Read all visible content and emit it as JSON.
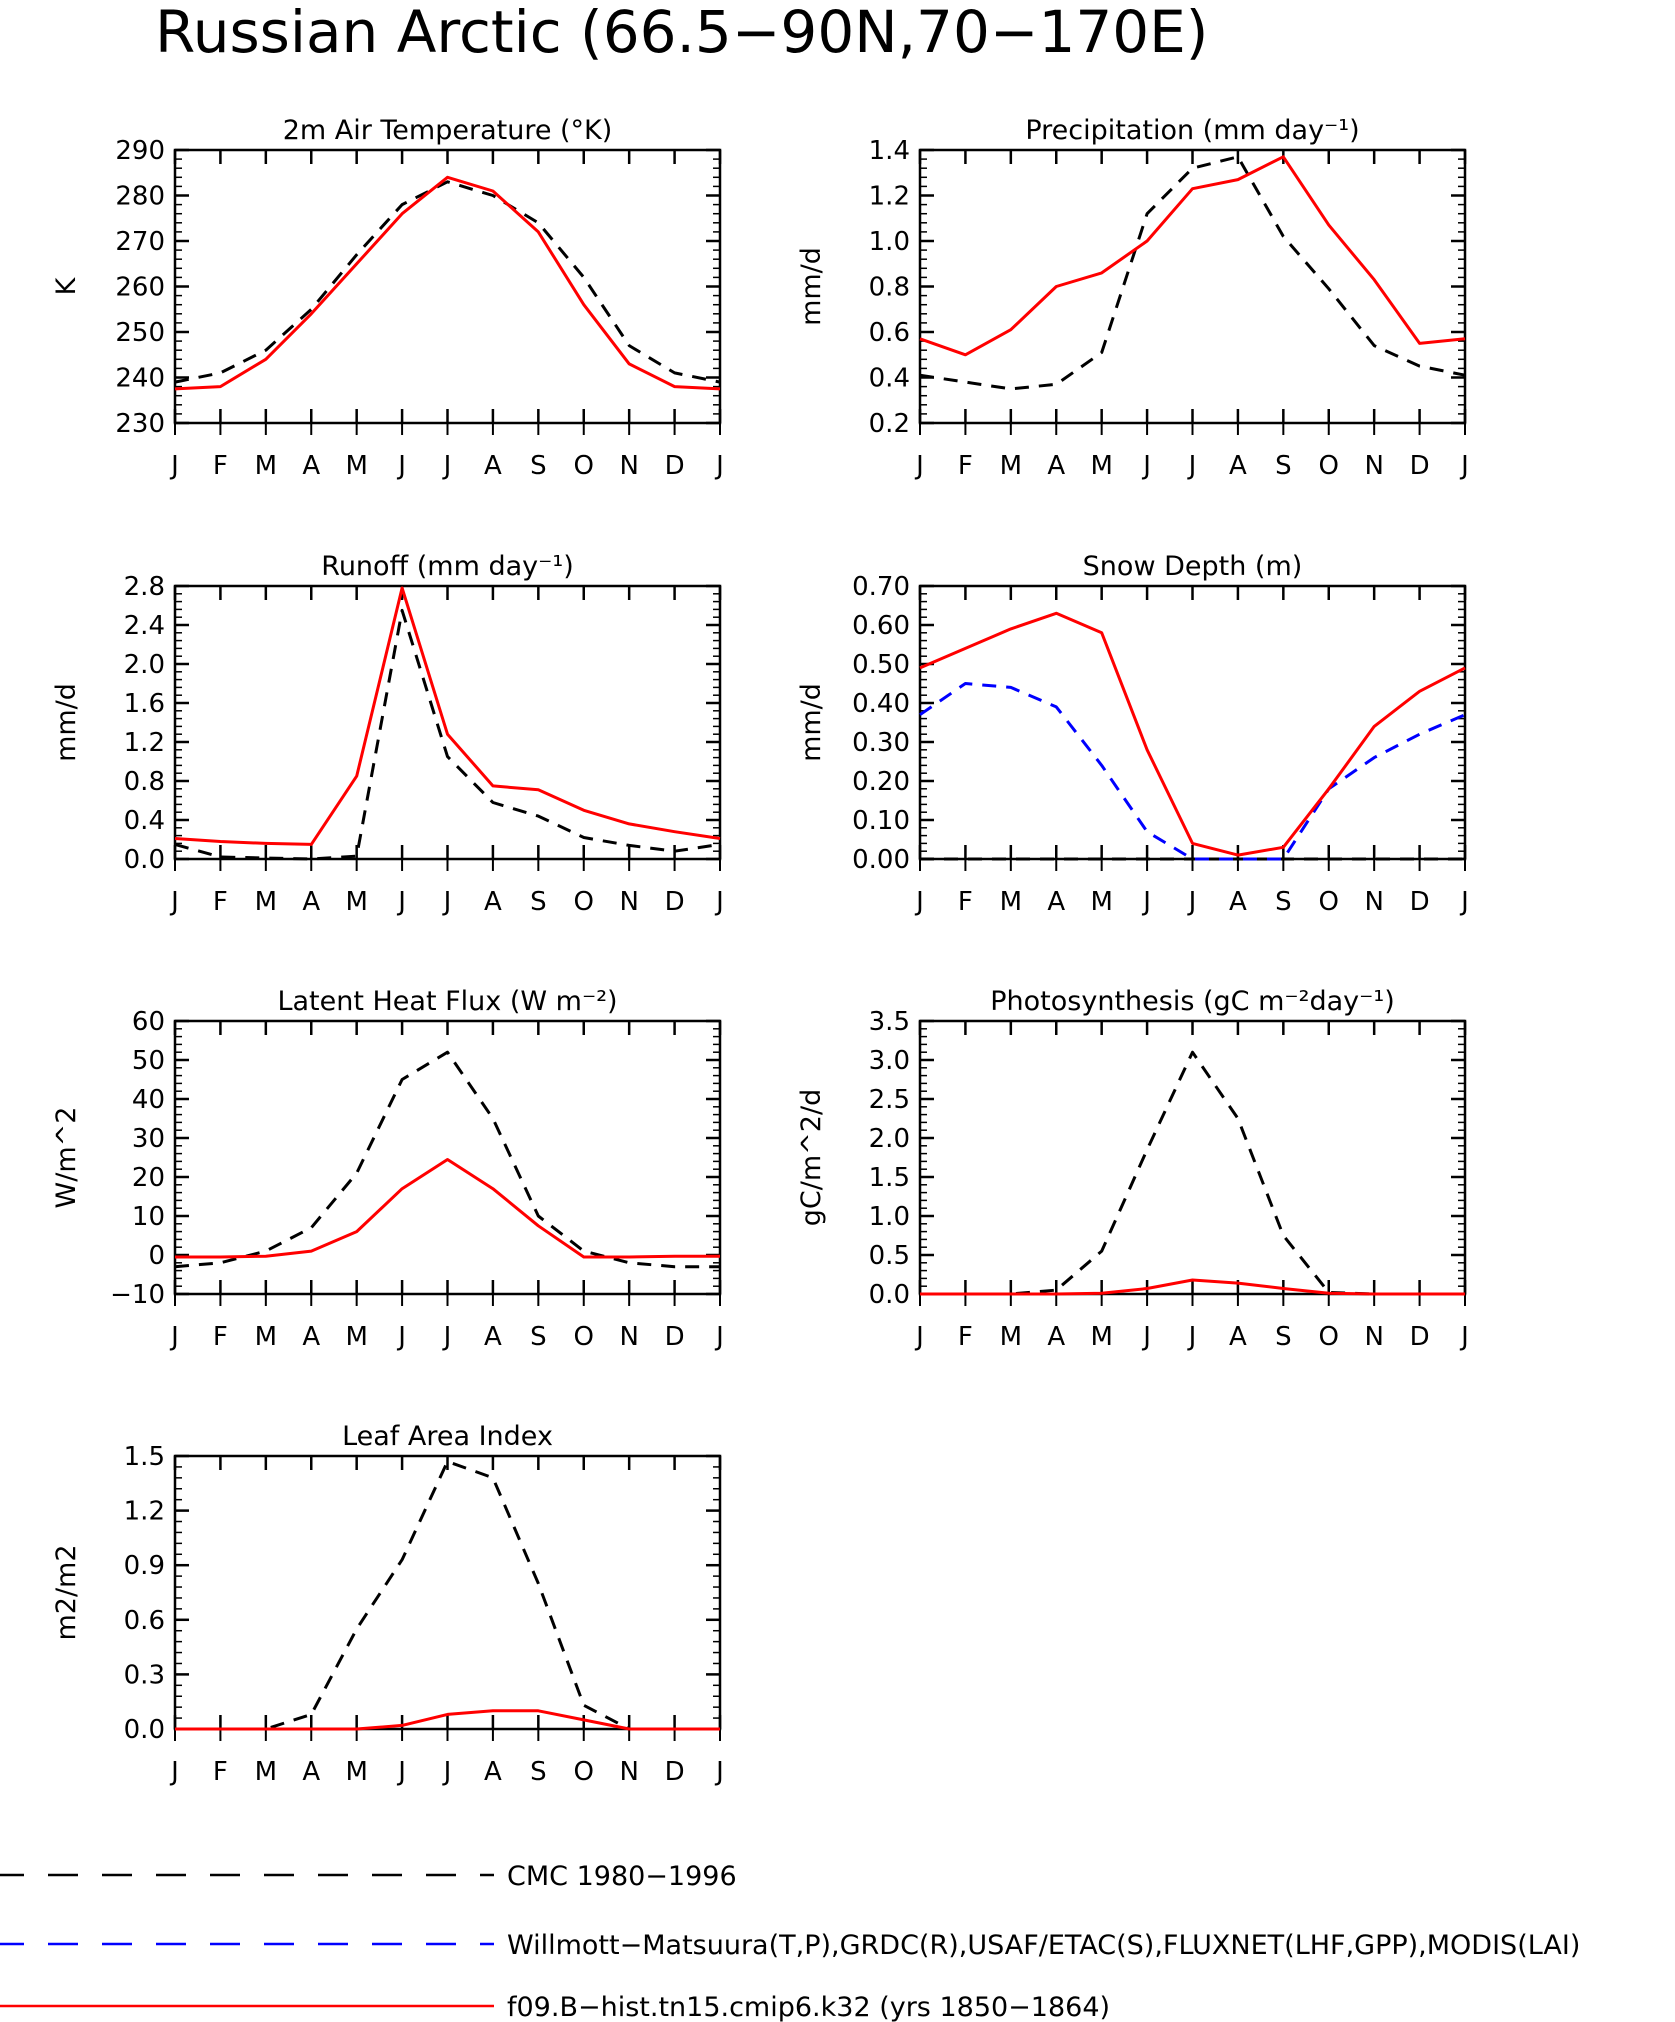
{
  "figure": {
    "title": "Russian Arctic (66.5−90N,70−170E)"
  },
  "colors": {
    "obs": "#000000",
    "obs2": "#0000ff",
    "model": "#ff0000"
  },
  "legend": [
    {
      "key": "obs",
      "label": "CMC 1980−1996",
      "color": "#000000",
      "dash": "dashed"
    },
    {
      "key": "obs2",
      "label": "Willmott−Matsuura(T,P),GRDC(R),USAF/ETAC(S),FLUXNET(LHF,GPP),MODIS(LAI)",
      "color": "#0000ff",
      "dash": "dashed"
    },
    {
      "key": "model",
      "label": "f09.B−hist.tn15.cmip6.k32 (yrs 1850−1864)",
      "color": "#ff0000",
      "dash": "solid"
    }
  ],
  "chart_data": [
    {
      "type": "line",
      "title": "2m Air Temperature (°K)",
      "ylabel": "K",
      "x": [
        "J",
        "F",
        "M",
        "A",
        "M",
        "J",
        "J",
        "A",
        "S",
        "O",
        "N",
        "D",
        "J"
      ],
      "ylim": [
        230,
        290
      ],
      "yticks": [
        "230",
        "240",
        "250",
        "260",
        "270",
        "280",
        "290"
      ],
      "ymajor_step": 10,
      "yminor_step": 2,
      "series": [
        {
          "key": "obs",
          "values": [
            239,
            241,
            246,
            255,
            267,
            278,
            283,
            280,
            274,
            262,
            247,
            241,
            239
          ]
        },
        {
          "key": "model",
          "values": [
            237.5,
            238,
            244,
            254,
            265,
            276,
            284,
            281,
            272,
            256,
            243,
            238,
            237.5
          ]
        }
      ]
    },
    {
      "type": "line",
      "title": "Precipitation (mm day⁻¹)",
      "ylabel": "mm/d",
      "x": [
        "J",
        "F",
        "M",
        "A",
        "M",
        "J",
        "J",
        "A",
        "S",
        "O",
        "N",
        "D",
        "J"
      ],
      "ylim": [
        0.2,
        1.4
      ],
      "yticks": [
        "0.2",
        "0.4",
        "0.6",
        "0.8",
        "1.0",
        "1.2",
        "1.4"
      ],
      "ymajor_step": 0.2,
      "yminor_step": 0.04,
      "series": [
        {
          "key": "obs",
          "values": [
            0.41,
            0.38,
            0.35,
            0.37,
            0.51,
            1.12,
            1.32,
            1.37,
            1.02,
            0.79,
            0.54,
            0.45,
            0.41
          ]
        },
        {
          "key": "model",
          "values": [
            0.57,
            0.5,
            0.61,
            0.8,
            0.86,
            1.0,
            1.23,
            1.27,
            1.37,
            1.07,
            0.83,
            0.55,
            0.57
          ]
        }
      ]
    },
    {
      "type": "line",
      "title": "Runoff (mm day⁻¹)",
      "ylabel": "mm/d",
      "x": [
        "J",
        "F",
        "M",
        "A",
        "M",
        "J",
        "J",
        "A",
        "S",
        "O",
        "N",
        "D",
        "J"
      ],
      "ylim": [
        0.0,
        2.8
      ],
      "yticks": [
        "0.0",
        "0.4",
        "0.8",
        "1.2",
        "1.6",
        "2.0",
        "2.4",
        "2.8"
      ],
      "ymajor_step": 0.4,
      "yminor_step": 0.08,
      "series": [
        {
          "key": "obs",
          "values": [
            0.15,
            0.02,
            0.01,
            0.0,
            0.03,
            2.55,
            1.05,
            0.58,
            0.44,
            0.22,
            0.14,
            0.08,
            0.15
          ]
        },
        {
          "key": "model",
          "values": [
            0.21,
            0.18,
            0.16,
            0.15,
            0.85,
            2.78,
            1.28,
            0.75,
            0.71,
            0.5,
            0.36,
            0.28,
            0.21
          ]
        }
      ]
    },
    {
      "type": "line",
      "title": "Snow Depth (m)",
      "ylabel": "mm/d",
      "x": [
        "J",
        "F",
        "M",
        "A",
        "M",
        "J",
        "J",
        "A",
        "S",
        "O",
        "N",
        "D",
        "J"
      ],
      "ylim": [
        0.0,
        0.7
      ],
      "yticks": [
        "0.00",
        "0.10",
        "0.20",
        "0.30",
        "0.40",
        "0.50",
        "0.60",
        "0.70"
      ],
      "ymajor_step": 0.1,
      "yminor_step": 0.02,
      "series": [
        {
          "key": "obs",
          "values": [
            0,
            0,
            0,
            0,
            0,
            0,
            0,
            0,
            0,
            0,
            0,
            0,
            0
          ]
        },
        {
          "key": "obs2",
          "values": [
            0.37,
            0.45,
            0.44,
            0.39,
            0.24,
            0.07,
            0.0,
            0.0,
            0.0,
            0.18,
            0.26,
            0.32,
            0.37
          ]
        },
        {
          "key": "model",
          "values": [
            0.49,
            0.54,
            0.59,
            0.63,
            0.58,
            0.28,
            0.04,
            0.01,
            0.03,
            0.18,
            0.34,
            0.43,
            0.49
          ]
        }
      ]
    },
    {
      "type": "line",
      "title": "Latent Heat Flux (W m⁻²)",
      "ylabel": "W/m^2",
      "x": [
        "J",
        "F",
        "M",
        "A",
        "M",
        "J",
        "J",
        "A",
        "S",
        "O",
        "N",
        "D",
        "J"
      ],
      "ylim": [
        -10,
        60
      ],
      "yticks": [
        "−10",
        "0",
        "10",
        "20",
        "30",
        "40",
        "50",
        "60"
      ],
      "ymajor_step": 10,
      "yminor_step": 2,
      "series": [
        {
          "key": "obs",
          "values": [
            -3,
            -2,
            1,
            7,
            21,
            45,
            52,
            35,
            10,
            1,
            -2,
            -3,
            -3
          ]
        },
        {
          "key": "model",
          "values": [
            -0.5,
            -0.5,
            -0.3,
            1,
            6,
            17,
            24.5,
            17,
            7.5,
            -0.5,
            -0.5,
            -0.3,
            -0.3
          ]
        }
      ]
    },
    {
      "type": "line",
      "title": "Photosynthesis (gC m⁻²day⁻¹)",
      "ylabel": "gC/m^2/d",
      "x": [
        "J",
        "F",
        "M",
        "A",
        "M",
        "J",
        "J",
        "A",
        "S",
        "O",
        "N",
        "D",
        "J"
      ],
      "ylim": [
        0.0,
        3.5
      ],
      "yticks": [
        "0.0",
        "0.5",
        "1.0",
        "1.5",
        "2.0",
        "2.5",
        "3.0",
        "3.5"
      ],
      "ymajor_step": 0.5,
      "yminor_step": 0.1,
      "series": [
        {
          "key": "obs",
          "values": [
            0,
            0,
            0,
            0.05,
            0.55,
            1.85,
            3.1,
            2.25,
            0.75,
            0.02,
            0,
            0,
            0
          ]
        },
        {
          "key": "model",
          "values": [
            0,
            0,
            0,
            0,
            0.01,
            0.07,
            0.18,
            0.14,
            0.07,
            0.01,
            0,
            0,
            0
          ]
        }
      ]
    },
    {
      "type": "line",
      "title": "Leaf Area Index",
      "ylabel": "m2/m2",
      "x": [
        "J",
        "F",
        "M",
        "A",
        "M",
        "J",
        "J",
        "A",
        "S",
        "O",
        "N",
        "D",
        "J"
      ],
      "ylim": [
        0.0,
        1.5
      ],
      "yticks": [
        "0.0",
        "0.3",
        "0.6",
        "0.9",
        "1.2",
        "1.5"
      ],
      "ymajor_step": 0.3,
      "yminor_step": 0.06,
      "series": [
        {
          "key": "obs",
          "values": [
            0,
            0,
            0,
            0.08,
            0.55,
            0.93,
            1.47,
            1.38,
            0.8,
            0.13,
            0,
            0,
            0
          ]
        },
        {
          "key": "model",
          "values": [
            0,
            0,
            0,
            0,
            0,
            0.02,
            0.08,
            0.1,
            0.1,
            0.05,
            0,
            0,
            0
          ]
        }
      ]
    }
  ]
}
